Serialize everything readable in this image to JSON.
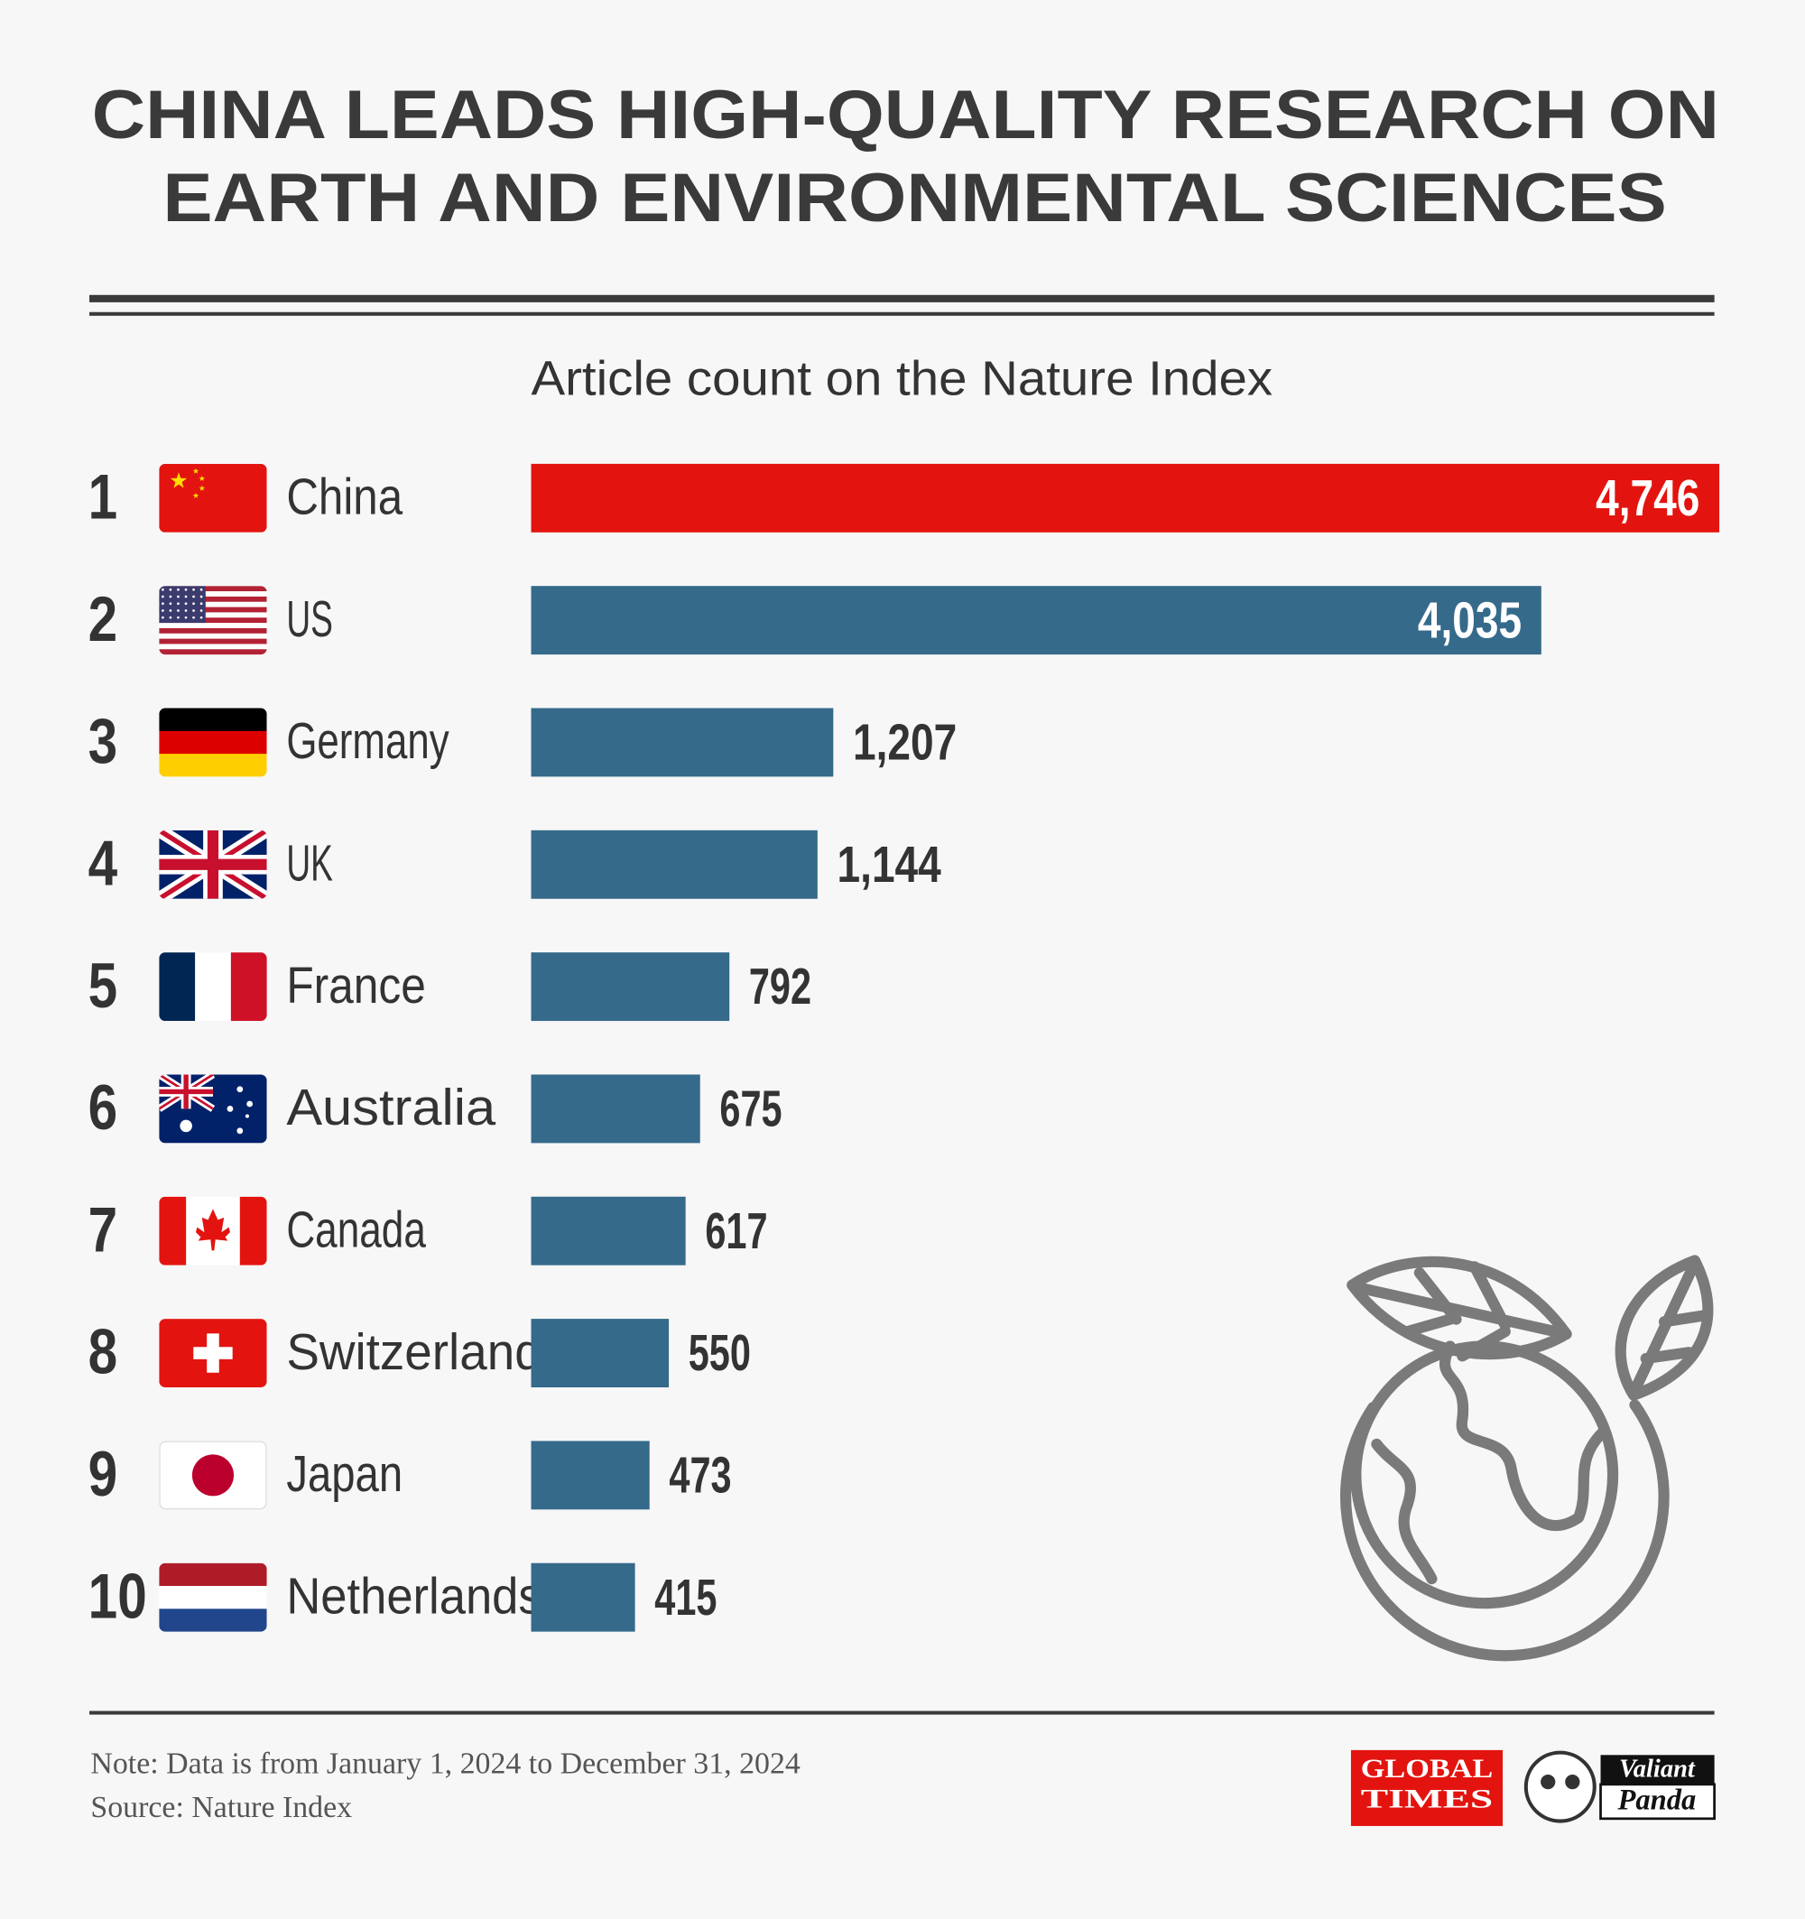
{
  "chart_data": {
    "type": "hbar",
    "title": [
      "CHINA LEADS HIGH-QUALITY RESEARCH ON",
      "EARTH AND ENVIRONMENTAL SCIENCES"
    ],
    "subtitle": "Article count on the Nature Index",
    "ranks": [
      1,
      2,
      3,
      4,
      5,
      6,
      7,
      8,
      9,
      10
    ],
    "categories": [
      "China",
      "US",
      "Germany",
      "UK",
      "France",
      "Australia",
      "Canada",
      "Switzerland",
      "Japan",
      "Netherlands"
    ],
    "values": [
      4746,
      4035,
      1207,
      1144,
      792,
      675,
      617,
      550,
      473,
      415
    ],
    "value_labels": [
      "4,746",
      "4,035",
      "1,207",
      "1,144",
      "792",
      "675",
      "617",
      "550",
      "473",
      "415"
    ],
    "colors": [
      "#e3140f",
      "#356a8b",
      "#356a8b",
      "#356a8b",
      "#356a8b",
      "#356a8b",
      "#356a8b",
      "#356a8b",
      "#356a8b",
      "#356a8b"
    ],
    "notes": [
      "Note: Data is from January 1, 2024 to December 31, 2024",
      "Source: Nature Index"
    ],
    "logos": {
      "global_times": [
        "GLOBAL",
        "TIMES"
      ],
      "valiant_panda": [
        "Valiant",
        "Panda"
      ]
    }
  }
}
